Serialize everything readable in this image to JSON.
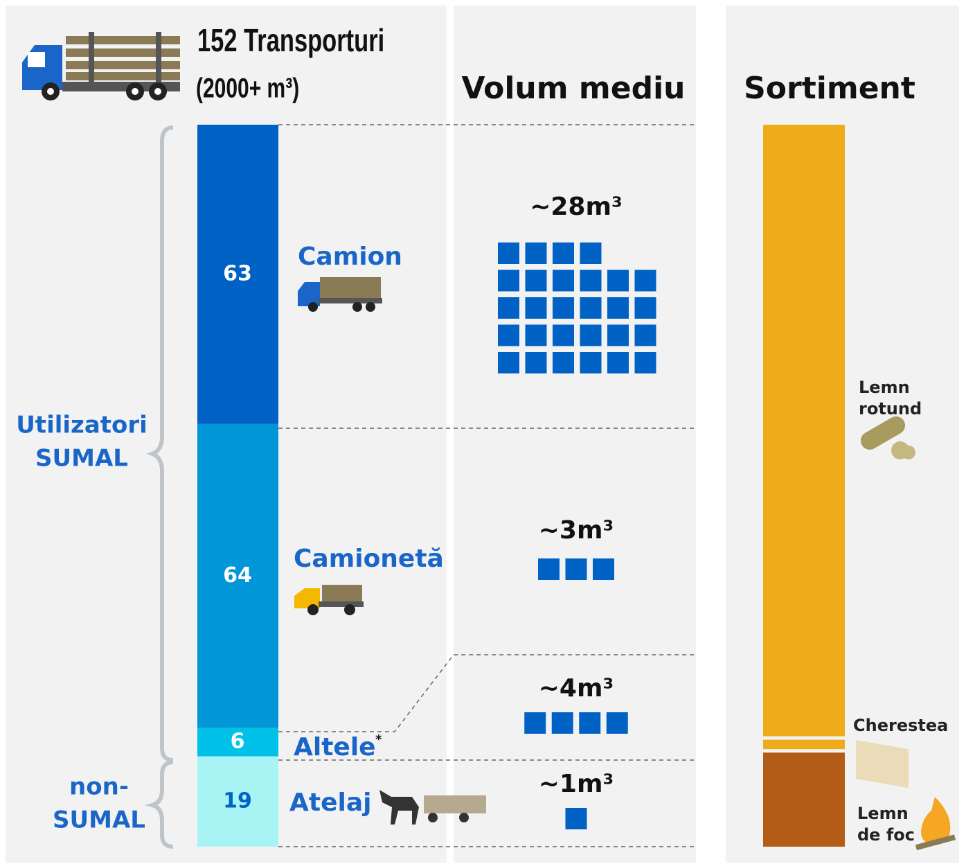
{
  "title": "152 Transporturi",
  "subtitle": "(2000+ m³)",
  "volume_header": "Volum mediu",
  "sortiment_header": "Sortiment",
  "groups": [
    {
      "lines": [
        "Utilizatori",
        "SUMAL"
      ]
    },
    {
      "lines": [
        "non-",
        "SUMAL"
      ]
    }
  ],
  "segments": [
    {
      "label": "Camion",
      "value": 63,
      "color": "#0062c4",
      "volume": 28,
      "volume_label": "~28m³"
    },
    {
      "label": "Camionetă",
      "value": 64,
      "color": "#0096d8",
      "volume": 3,
      "volume_label": "~3m³"
    },
    {
      "label": "Altele",
      "note": "*",
      "value": 6,
      "color": "#00c2e8",
      "volume": 4,
      "volume_label": "~4m³"
    },
    {
      "label": "Atelaj",
      "value": 19,
      "color": "#a8f4f4",
      "volume": 1,
      "volume_label": "~1m³"
    }
  ],
  "sortiment": [
    {
      "lines": [
        "Lemn",
        "rotund"
      ],
      "value": 130,
      "color": "#eeab1a"
    },
    {
      "lines": [
        "Cherestea"
      ],
      "value": 2,
      "color": "#eeab1a"
    },
    {
      "lines": [
        "Lemn",
        "de foc"
      ],
      "value": 20,
      "color": "#b35c17"
    }
  ]
}
